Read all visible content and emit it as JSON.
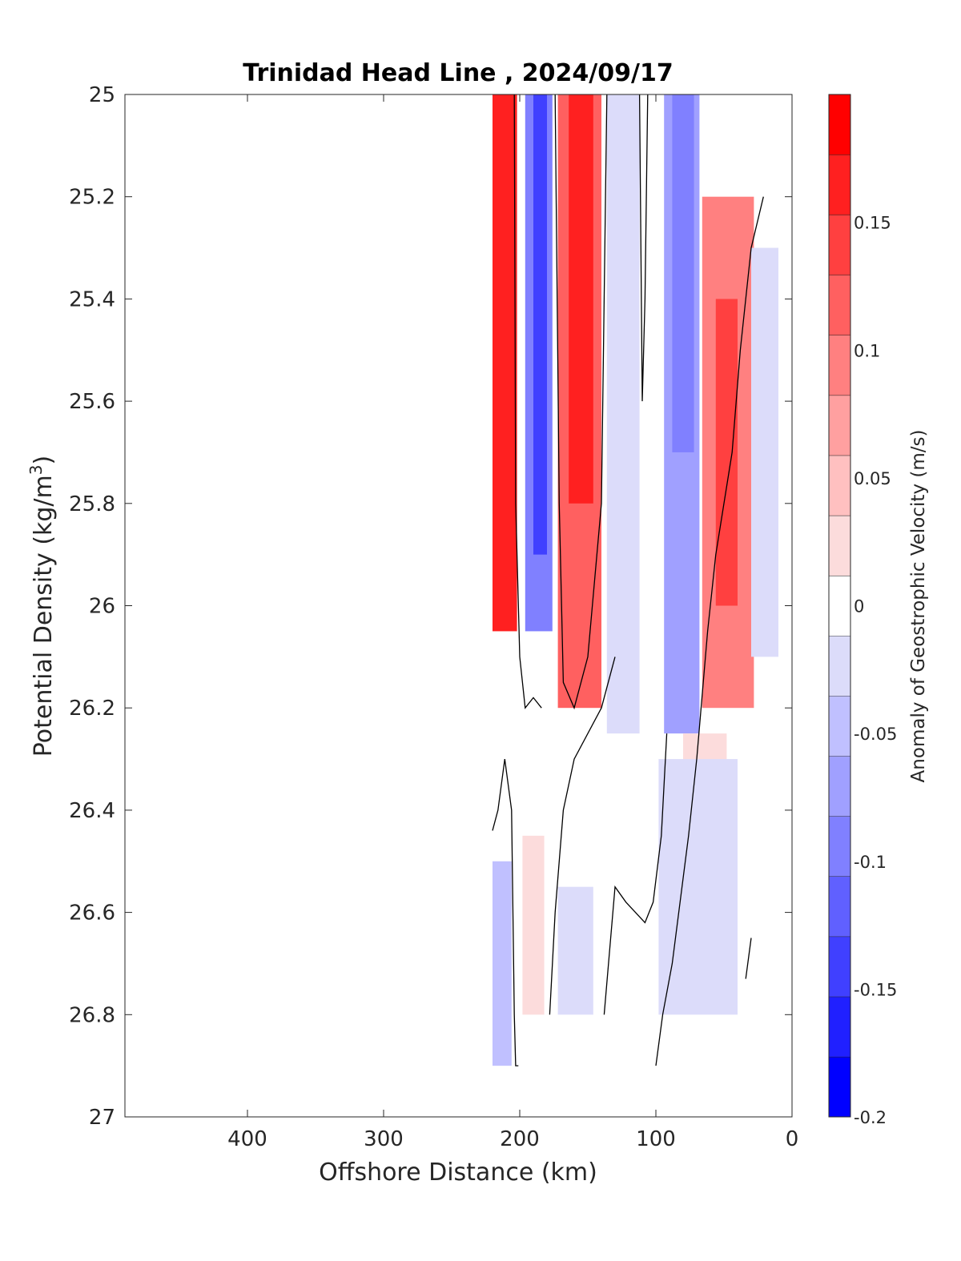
{
  "chart_data": {
    "type": "heatmap",
    "title": "Trinidad Head Line , 2024/09/17",
    "xlabel": "Offshore Distance (km)",
    "ylabel": "Potential Density (kg/m",
    "ylabel_sup": "3",
    "ylabel_close": ")",
    "xlim": [
      490,
      0
    ],
    "x_reversed": true,
    "ylim": [
      25,
      27
    ],
    "y_reversed": true,
    "xticks": [
      400,
      300,
      200,
      100,
      0
    ],
    "yticks": [
      25,
      25.2,
      25.4,
      25.6,
      25.8,
      26,
      26.2,
      26.4,
      26.6,
      26.8,
      27
    ],
    "colorbar": {
      "label": "Anomaly of Geostrophic Velocity (m/s)",
      "range": [
        -0.2,
        0.2
      ],
      "ticks": [
        -0.2,
        -0.15,
        -0.1,
        -0.05,
        0,
        0.05,
        0.1,
        0.15
      ],
      "levels": [
        -0.2,
        -0.175,
        -0.15,
        -0.125,
        -0.1,
        -0.075,
        -0.05,
        -0.025,
        0.025,
        0.05,
        0.075,
        0.1,
        0.125,
        0.15,
        0.175,
        0.2
      ],
      "colors": [
        "#0000ff",
        "#2020ff",
        "#4040ff",
        "#6060ff",
        "#8080ff",
        "#a0a0ff",
        "#c0c0ff",
        "#dcdcfa",
        "#ffffff",
        "#fcdcdc",
        "#ffc0c0",
        "#ffa0a0",
        "#ff8080",
        "#ff6060",
        "#ff4040",
        "#ff2020",
        "#ff0000"
      ]
    },
    "bands": [
      {
        "x": [
          220,
          202
        ],
        "value": 0.18,
        "sigma_range": [
          25.0,
          26.05
        ]
      },
      {
        "x": [
          214,
          204
        ],
        "value": 0.2,
        "sigma_range": [
          25.0,
          25.9
        ]
      },
      {
        "x": [
          196,
          176
        ],
        "value": -0.1,
        "sigma_range": [
          25.0,
          26.05
        ]
      },
      {
        "x": [
          190,
          180
        ],
        "value": -0.15,
        "sigma_range": [
          25.0,
          25.9
        ]
      },
      {
        "x": [
          172,
          140
        ],
        "value": 0.15,
        "sigma_range": [
          25.0,
          26.2
        ]
      },
      {
        "x": [
          164,
          146
        ],
        "value": 0.19,
        "sigma_range": [
          25.0,
          25.8
        ]
      },
      {
        "x": [
          136,
          112
        ],
        "value": -0.04,
        "sigma_range": [
          25.0,
          26.25
        ]
      },
      {
        "x": [
          94,
          68
        ],
        "value": -0.08,
        "sigma_range": [
          25.0,
          26.25
        ]
      },
      {
        "x": [
          88,
          72
        ],
        "value": -0.12,
        "sigma_range": [
          25.0,
          25.7
        ]
      },
      {
        "x": [
          66,
          28
        ],
        "value": 0.12,
        "sigma_range": [
          25.2,
          26.2
        ]
      },
      {
        "x": [
          56,
          40
        ],
        "value": 0.17,
        "sigma_range": [
          25.4,
          26.0
        ]
      },
      {
        "x": [
          30,
          10
        ],
        "value": -0.04,
        "sigma_range": [
          25.3,
          26.1
        ]
      },
      {
        "x": [
          80,
          48
        ],
        "value": 0.04,
        "sigma_range": [
          26.25,
          26.6
        ]
      },
      {
        "x": [
          98,
          40
        ],
        "value": -0.04,
        "sigma_range": [
          26.3,
          26.8
        ]
      },
      {
        "x": [
          220,
          206
        ],
        "value": -0.07,
        "sigma_range": [
          26.5,
          26.9
        ]
      },
      {
        "x": [
          198,
          182
        ],
        "value": 0.04,
        "sigma_range": [
          26.45,
          26.8
        ]
      },
      {
        "x": [
          172,
          146
        ],
        "value": -0.04,
        "sigma_range": [
          26.55,
          26.8
        ]
      }
    ],
    "zero_contours": [
      {
        "x": [
          204,
          203,
          200,
          196,
          190,
          184
        ],
        "sigma": [
          25.0,
          25.8,
          26.1,
          26.2,
          26.18,
          26.2
        ]
      },
      {
        "x": [
          220,
          216,
          211,
          206,
          204,
          203,
          201
        ],
        "sigma": [
          26.44,
          26.4,
          26.3,
          26.4,
          26.8,
          26.9,
          26.9
        ]
      },
      {
        "x": [
          174,
          171,
          168,
          160,
          150,
          140,
          136
        ],
        "sigma": [
          25.0,
          25.8,
          26.15,
          26.2,
          26.1,
          25.8,
          25.0
        ]
      },
      {
        "x": [
          178,
          174,
          168,
          160,
          140,
          130
        ],
        "sigma": [
          26.8,
          26.6,
          26.4,
          26.3,
          26.2,
          26.1
        ]
      },
      {
        "x": [
          112,
          110,
          108,
          106
        ],
        "sigma": [
          25.0,
          25.6,
          25.4,
          25.0
        ]
      },
      {
        "x": [
          100,
          95,
          88,
          76,
          70,
          62,
          56,
          44,
          38,
          30,
          21
        ],
        "sigma": [
          26.9,
          26.8,
          26.7,
          26.45,
          26.3,
          26.05,
          25.9,
          25.7,
          25.5,
          25.3,
          25.2
        ]
      },
      {
        "x": [
          138,
          130,
          122,
          108,
          102,
          96,
          92
        ],
        "sigma": [
          26.8,
          26.55,
          26.58,
          26.62,
          26.58,
          26.45,
          26.25
        ]
      },
      {
        "x": [
          34,
          30
        ],
        "sigma": [
          26.73,
          26.65
        ]
      }
    ]
  }
}
